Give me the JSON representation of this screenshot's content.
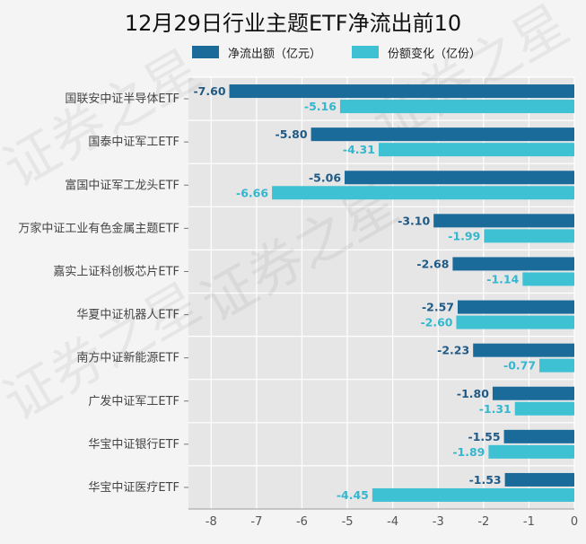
{
  "chart_data": {
    "type": "bar",
    "orientation": "horizontal",
    "title": "12月29日行业主题ETF净流出前10",
    "categories": [
      "国联安中证半导体ETF",
      "国泰中证军工ETF",
      "富国中证军工龙头ETF",
      "万家中证工业有色金属主题ETF",
      "嘉实上证科创板芯片ETF",
      "华夏中证机器人ETF",
      "南方中证新能源ETF",
      "广发中证军工ETF",
      "华宝中证银行ETF",
      "华宝中证医疗ETF"
    ],
    "series": [
      {
        "name": "净流出额（亿元）",
        "color": "#1a6a9a",
        "values": [
          -7.6,
          -5.8,
          -5.06,
          -3.1,
          -2.68,
          -2.57,
          -2.23,
          -1.8,
          -1.55,
          -1.53
        ],
        "labels": [
          "-7.60",
          "-5.80",
          "-5.06",
          "-3.10",
          "-2.68",
          "-2.57",
          "-2.23",
          "-1.80",
          "-1.55",
          "-1.53"
        ]
      },
      {
        "name": "份额变化（亿份）",
        "color": "#3ec1d3",
        "values": [
          -5.16,
          -4.31,
          -6.66,
          -1.99,
          -1.14,
          -2.6,
          -0.77,
          -1.31,
          -1.89,
          -4.45
        ],
        "labels": [
          "-5.16",
          "-4.31",
          "-6.66",
          "-1.99",
          "-1.14",
          "-2.60",
          "-0.77",
          "-1.31",
          "-1.89",
          "-4.45"
        ]
      }
    ],
    "xlim": [
      -8.5,
      0
    ],
    "xticks": [
      -8,
      -7,
      -6,
      -5,
      -4,
      -3,
      -2,
      -1,
      0
    ],
    "xtick_labels": [
      "-8",
      "-7",
      "-6",
      "-5",
      "-4",
      "-3",
      "-2",
      "-1",
      "0"
    ],
    "legend_position": "top-center",
    "grid": true,
    "watermark": "证券之星"
  }
}
